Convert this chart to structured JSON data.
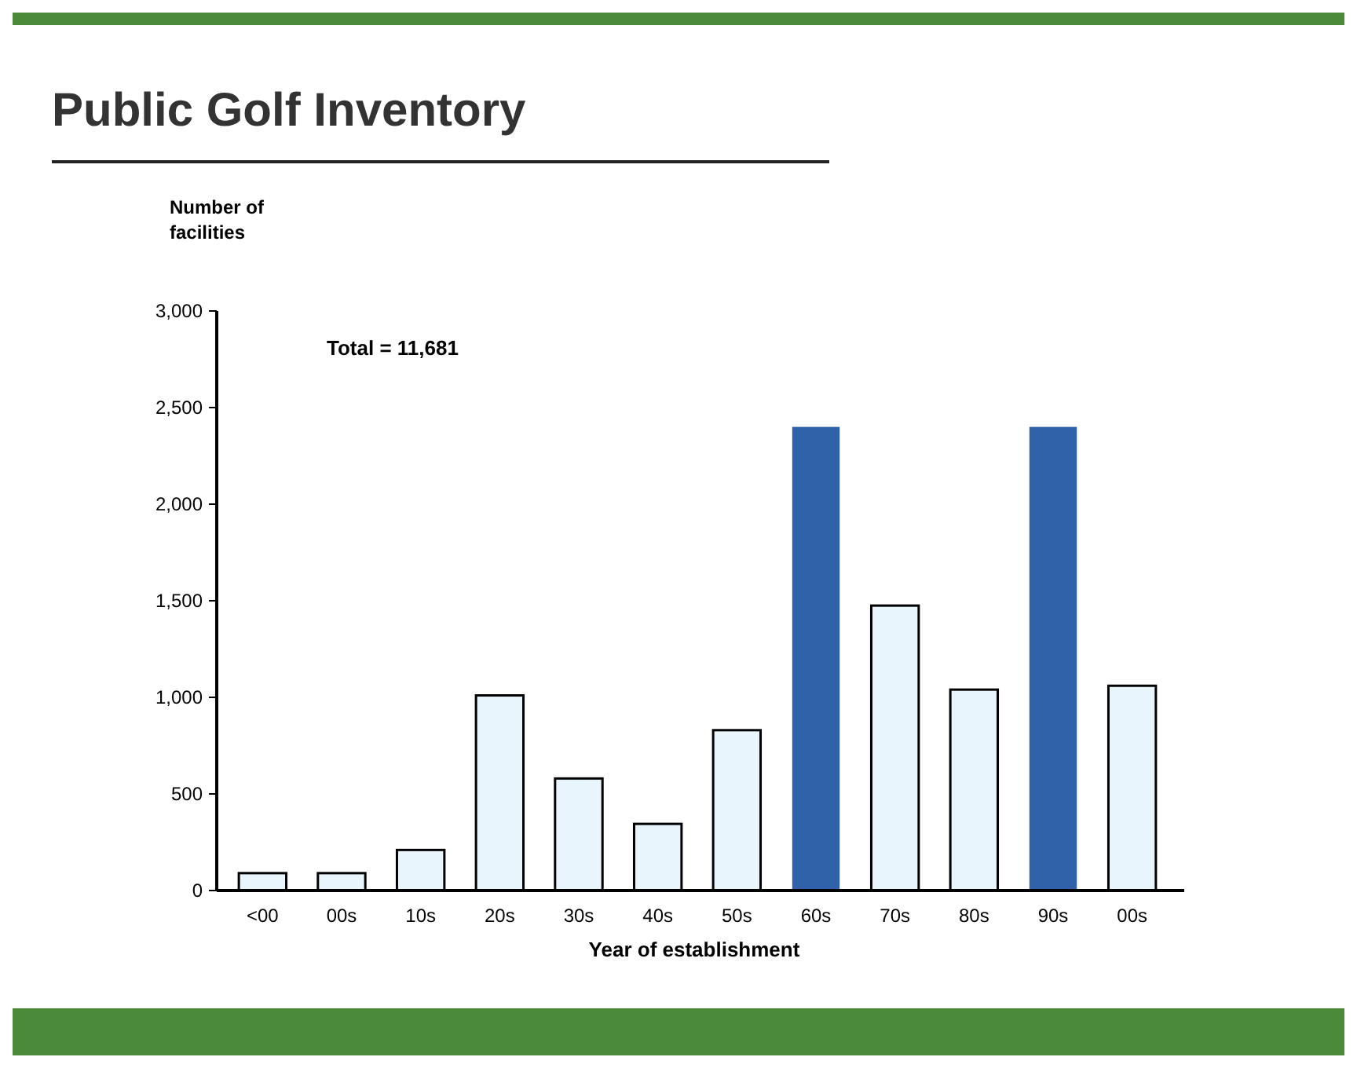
{
  "chart_data": {
    "type": "bar",
    "title": "Public Golf Inventory",
    "ylabel": "Number of facilities",
    "xlabel": "Year of establishment",
    "categories": [
      "<00",
      "00s",
      "10s",
      "20s",
      "30s",
      "40s",
      "50s",
      "60s",
      "70s",
      "80s",
      "90s",
      "00s"
    ],
    "values": [
      90,
      90,
      210,
      1010,
      580,
      345,
      830,
      2400,
      1475,
      1040,
      2400,
      1060
    ],
    "colors": [
      "#e8f5fc",
      "#e8f5fc",
      "#e8f5fc",
      "#e8f5fc",
      "#e8f5fc",
      "#e8f5fc",
      "#e8f5fc",
      "#2f62a8",
      "#e8f5fc",
      "#e8f5fc",
      "#2f62a8",
      "#e8f5fc"
    ],
    "ylim": [
      0,
      3000
    ],
    "yticks": [
      0,
      {
        "value": 500,
        "label": "500"
      },
      {
        "value": 1000,
        "label": "1,000"
      },
      {
        "value": 1500,
        "label": "1,500"
      },
      {
        "value": 2000,
        "label": "2,000"
      },
      {
        "value": 2500,
        "label": "2,500"
      },
      {
        "value": 3000,
        "label": "3,000"
      }
    ],
    "annotations": [
      "Total = 11,681"
    ],
    "grid": false
  }
}
